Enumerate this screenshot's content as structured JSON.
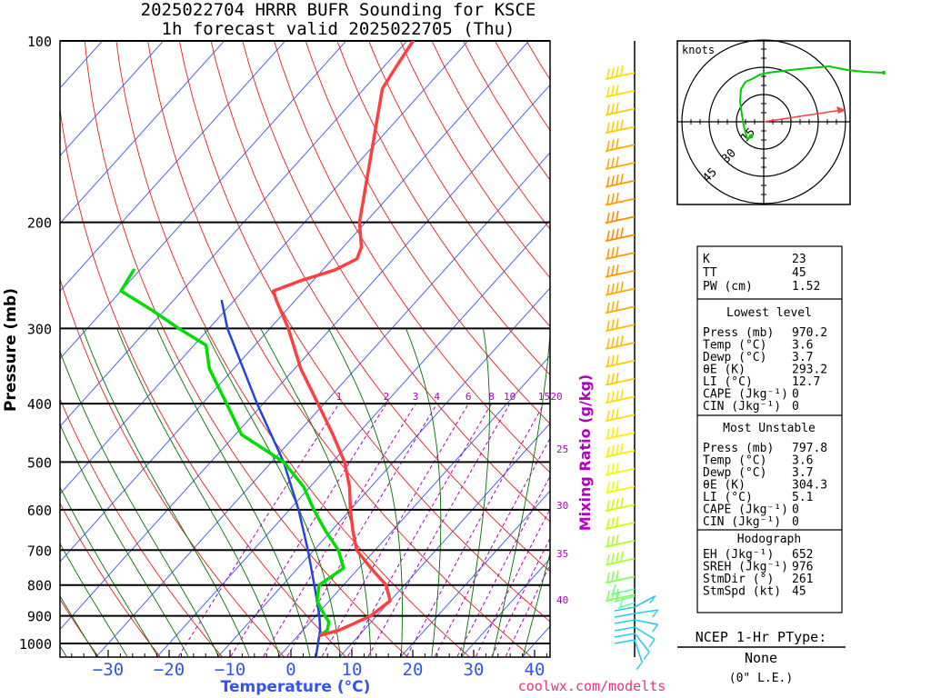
{
  "header": {
    "title_line1": "2025022704 HRRR BUFR Sounding for KSCE",
    "title_line2": "1h forecast valid 2025022705 (Thu)"
  },
  "colors": {
    "temperature": "#ff4040",
    "dewpoint": "#00dd00",
    "parcel": "#2244dd",
    "isotherm": "#4a66e0",
    "dry_adiabat": "#e02020",
    "moist_adiabat": "#007000",
    "mixing_ratio": "#b000c0",
    "accent_blue": "#3355ee"
  },
  "chart_data": {
    "type": "skew-t",
    "xlabel": "Temperature (°C)",
    "ylabel": "Pressure (mb)",
    "mixing_ratio_label": "Mixing Ratio (g/kg)",
    "x_ticks": [
      -30,
      -20,
      -10,
      0,
      10,
      20,
      30,
      40
    ],
    "pressure_levels": [
      100,
      200,
      300,
      400,
      500,
      600,
      700,
      800,
      900,
      1000
    ],
    "xlim": [
      -40,
      42
    ],
    "ylim_mb": [
      1050,
      100
    ],
    "mixing_ratio_lines": [
      "1",
      "2",
      "3",
      "4",
      "6",
      "8",
      "10",
      "15",
      "20",
      "25",
      "30",
      "35",
      "40"
    ],
    "series": [
      {
        "name": "Temperature",
        "points": [
          {
            "p": 970,
            "t": 3.6
          },
          {
            "p": 950,
            "t": 6
          },
          {
            "p": 900,
            "t": 9
          },
          {
            "p": 850,
            "t": 10
          },
          {
            "p": 800,
            "t": 7
          },
          {
            "p": 750,
            "t": 2
          },
          {
            "p": 700,
            "t": -3
          },
          {
            "p": 650,
            "t": -6.5
          },
          {
            "p": 600,
            "t": -10
          },
          {
            "p": 550,
            "t": -13.5
          },
          {
            "p": 500,
            "t": -18
          },
          {
            "p": 450,
            "t": -24
          },
          {
            "p": 400,
            "t": -31
          },
          {
            "p": 350,
            "t": -39
          },
          {
            "p": 300,
            "t": -47
          },
          {
            "p": 270,
            "t": -53
          },
          {
            "p": 260,
            "t": -55
          },
          {
            "p": 250,
            "t": -52
          },
          {
            "p": 240,
            "t": -48
          },
          {
            "p": 230,
            "t": -46
          },
          {
            "p": 220,
            "t": -47
          },
          {
            "p": 200,
            "t": -51
          },
          {
            "p": 150,
            "t": -60
          },
          {
            "p": 120,
            "t": -67
          },
          {
            "p": 110,
            "t": -68
          },
          {
            "p": 100,
            "t": -69
          }
        ]
      },
      {
        "name": "Dewpoint",
        "points": [
          {
            "p": 970,
            "t": 3.7
          },
          {
            "p": 950,
            "t": 4
          },
          {
            "p": 920,
            "t": 3
          },
          {
            "p": 900,
            "t": 1.5
          },
          {
            "p": 850,
            "t": -2
          },
          {
            "p": 800,
            "t": -4
          },
          {
            "p": 750,
            "t": -2.5
          },
          {
            "p": 700,
            "t": -6
          },
          {
            "p": 650,
            "t": -11
          },
          {
            "p": 600,
            "t": -16
          },
          {
            "p": 550,
            "t": -21
          },
          {
            "p": 500,
            "t": -28
          },
          {
            "p": 450,
            "t": -39
          },
          {
            "p": 400,
            "t": -46
          },
          {
            "p": 350,
            "t": -54
          },
          {
            "p": 320,
            "t": -58
          },
          {
            "p": 300,
            "t": -65
          },
          {
            "p": 280,
            "t": -72
          },
          {
            "p": 260,
            "t": -80
          },
          {
            "p": 240,
            "t": -81
          }
        ]
      },
      {
        "name": "Parcel",
        "points": [
          {
            "p": 1050,
            "t": 6
          },
          {
            "p": 950,
            "t": 2.8
          },
          {
            "p": 900,
            "t": 0.6
          },
          {
            "p": 850,
            "t": -2
          },
          {
            "p": 800,
            "t": -4.8
          },
          {
            "p": 700,
            "t": -11
          },
          {
            "p": 600,
            "t": -18.5
          },
          {
            "p": 500,
            "t": -28
          },
          {
            "p": 400,
            "t": -41
          },
          {
            "p": 300,
            "t": -57
          },
          {
            "p": 270,
            "t": -62
          }
        ]
      }
    ],
    "hodograph": {
      "units": "knots",
      "ring_labels": [
        "15",
        "30",
        "45"
      ],
      "storm_motion": {
        "dir_deg": 261,
        "speed_kt": 45
      }
    }
  },
  "indices": {
    "top": [
      {
        "label": "K",
        "value": "23"
      },
      {
        "label": "TT",
        "value": "45"
      },
      {
        "label": "PW (cm)",
        "value": "1.52"
      }
    ],
    "lowest_level": {
      "title": "Lowest level",
      "rows": [
        {
          "label": "Press (mb)",
          "value": "970.2"
        },
        {
          "label": "Temp (°C)",
          "value": "3.6"
        },
        {
          "label": "Dewp (°C)",
          "value": "3.7"
        },
        {
          "label": "θE (K)",
          "value": "293.2"
        },
        {
          "label": "LI (°C)",
          "value": "12.7"
        },
        {
          "label": "CAPE (Jkg⁻¹)",
          "value": "0"
        },
        {
          "label": "CIN (Jkg⁻¹)",
          "value": "0"
        }
      ]
    },
    "most_unstable": {
      "title": "Most Unstable",
      "rows": [
        {
          "label": "Press (mb)",
          "value": "797.8"
        },
        {
          "label": "Temp (°C)",
          "value": "3.6"
        },
        {
          "label": "Dewp (°C)",
          "value": "3.7"
        },
        {
          "label": "θE (K)",
          "value": "304.3"
        },
        {
          "label": "LI (°C)",
          "value": "5.1"
        },
        {
          "label": "CAPE (Jkg⁻¹)",
          "value": "0"
        },
        {
          "label": "CIN (Jkg⁻¹)",
          "value": "0"
        }
      ]
    },
    "hodograph_box": {
      "title": "Hodograph",
      "rows": [
        {
          "label": "EH (Jkg⁻¹)",
          "value": "652"
        },
        {
          "label": "SREH (Jkg⁻¹)",
          "value": "976"
        },
        {
          "label": "StmDir (°)",
          "value": "261"
        },
        {
          "label": "StmSpd (kt)",
          "value": "45"
        }
      ]
    }
  },
  "ptype": {
    "title": "NCEP 1-Hr PType:",
    "value": "None",
    "note": "(0\" L.E.)"
  },
  "credit": "coolwx.com/modelts"
}
